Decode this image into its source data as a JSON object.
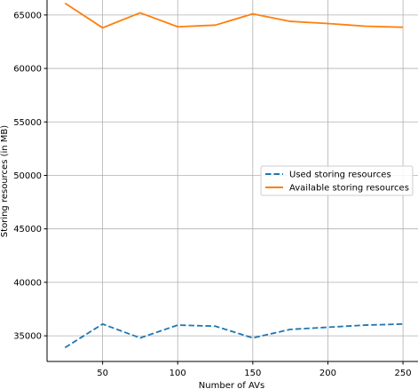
{
  "chart_data": {
    "type": "line",
    "title": "",
    "xlabel": "Number of AVs",
    "ylabel": "Storing resources (in MB)",
    "x": [
      25,
      50,
      75,
      100,
      125,
      150,
      175,
      200,
      225,
      250
    ],
    "xlim": [
      13,
      260
    ],
    "ylim": [
      32600,
      66400
    ],
    "xticks": [
      50,
      100,
      150,
      200,
      250
    ],
    "yticks": [
      35000,
      40000,
      45000,
      50000,
      55000,
      60000,
      65000
    ],
    "grid": true,
    "legend_position": "center-right",
    "series": [
      {
        "name": "Used storing resources",
        "color": "#1f77b4",
        "style": "dashed",
        "values": [
          33900,
          36100,
          34800,
          36000,
          35900,
          34800,
          35600,
          35800,
          36000,
          36100
        ]
      },
      {
        "name": "Available storing resources",
        "color": "#ff7f0e",
        "style": "solid",
        "values": [
          66100,
          63800,
          65200,
          63900,
          64050,
          65100,
          64400,
          64200,
          63950,
          63850
        ]
      }
    ]
  }
}
